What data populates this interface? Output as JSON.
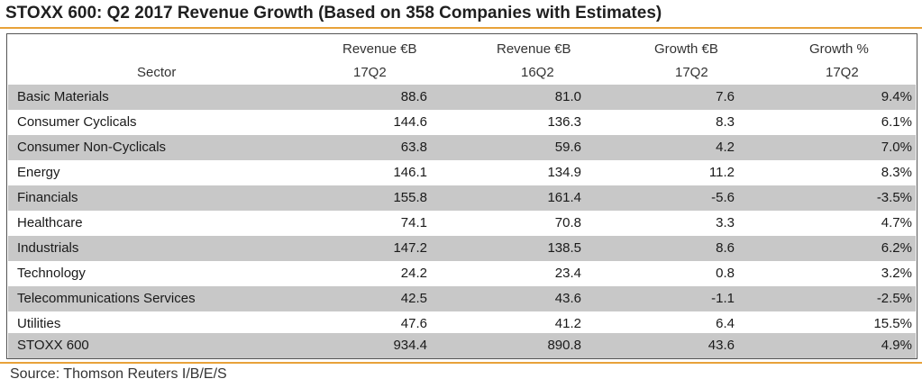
{
  "title": "STOXX 600: Q2 2017 Revenue Growth (Based on 358 Companies with Estimates)",
  "columns": [
    {
      "line1": "",
      "line2": "Sector"
    },
    {
      "line1": "Revenue €B",
      "line2": "17Q2"
    },
    {
      "line1": "Revenue €B",
      "line2": "16Q2"
    },
    {
      "line1": "Growth €B",
      "line2": "17Q2"
    },
    {
      "line1": "Growth %",
      "line2": "17Q2"
    }
  ],
  "rows": [
    {
      "sector": "Basic Materials",
      "rev17": "88.6",
      "rev16": "81.0",
      "growth_eur": "7.6",
      "growth_pct": "9.4%"
    },
    {
      "sector": "Consumer Cyclicals",
      "rev17": "144.6",
      "rev16": "136.3",
      "growth_eur": "8.3",
      "growth_pct": "6.1%"
    },
    {
      "sector": "Consumer Non-Cyclicals",
      "rev17": "63.8",
      "rev16": "59.6",
      "growth_eur": "4.2",
      "growth_pct": "7.0%"
    },
    {
      "sector": "Energy",
      "rev17": "146.1",
      "rev16": "134.9",
      "growth_eur": "11.2",
      "growth_pct": "8.3%"
    },
    {
      "sector": "Financials",
      "rev17": "155.8",
      "rev16": "161.4",
      "growth_eur": "-5.6",
      "growth_pct": "-3.5%"
    },
    {
      "sector": "Healthcare",
      "rev17": "74.1",
      "rev16": "70.8",
      "growth_eur": "3.3",
      "growth_pct": "4.7%"
    },
    {
      "sector": "Industrials",
      "rev17": "147.2",
      "rev16": "138.5",
      "growth_eur": "8.6",
      "growth_pct": "6.2%"
    },
    {
      "sector": "Technology",
      "rev17": "24.2",
      "rev16": "23.4",
      "growth_eur": "0.8",
      "growth_pct": "3.2%"
    },
    {
      "sector": "Telecommunications Services",
      "rev17": "42.5",
      "rev16": "43.6",
      "growth_eur": "-1.1",
      "growth_pct": "-2.5%"
    },
    {
      "sector": "Utilities",
      "rev17": "47.6",
      "rev16": "41.2",
      "growth_eur": "6.4",
      "growth_pct": "15.5%"
    },
    {
      "sector": "STOXX 600",
      "rev17": "934.4",
      "rev16": "890.8",
      "growth_eur": "43.6",
      "growth_pct": "4.9%"
    }
  ],
  "source": "Source: Thomson Reuters I/B/E/S",
  "colors": {
    "accent_rule": "#e8a23a",
    "shaded_row": "#c8c8c8"
  }
}
